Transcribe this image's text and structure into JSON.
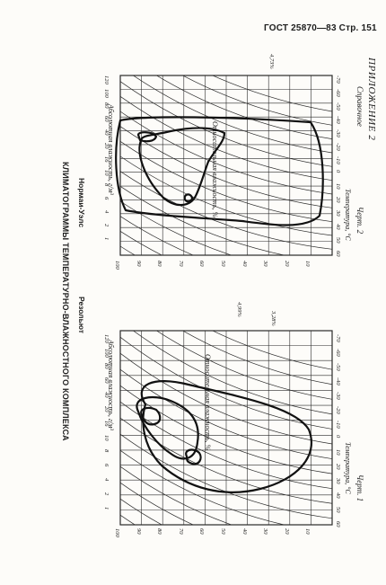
{
  "header": "ГОСТ 25870—83 Стр. 151",
  "appendix": {
    "title": "ПРИЛОЖЕНИЕ 2",
    "subtitle": "Справочное"
  },
  "main_title": "КЛИМАТОГРАММЫ ТЕМПЕРАТУРНО-ВЛАЖНОСТНОГО КОМПЛЕКСА",
  "charts": [
    {
      "id": "fig1",
      "place": "Резольют",
      "caption": "Черт. 1",
      "temp_label": "Температура, °C",
      "rh_label": "Относительная влажность, %",
      "abs_label": "Абсолютная влажность, г/м³",
      "pct_labels": [
        "4,99%",
        "3,28%"
      ]
    },
    {
      "id": "fig2",
      "place": "Нормаи-Уэлс",
      "caption": "Черт. 2",
      "temp_label": "Температура, °C",
      "rh_label": "Относительная влажность, %",
      "abs_label": "Абсолютная влажность, г/м³",
      "pct_labels": [
        "4,73%"
      ]
    }
  ],
  "axis": {
    "temps": [
      "-70",
      "-60",
      "-50",
      "-40",
      "-30",
      "-20",
      "-10",
      "0",
      "10",
      "20",
      "30",
      "40",
      "50",
      "60"
    ],
    "rh": [
      "100",
      "90",
      "80",
      "70",
      "60",
      "50",
      "40",
      "30",
      "20",
      "10"
    ],
    "abs": [
      "120",
      "100",
      "80",
      "60",
      "40",
      "20",
      "16",
      "10",
      "8",
      "6",
      "4",
      "2",
      "1"
    ]
  }
}
